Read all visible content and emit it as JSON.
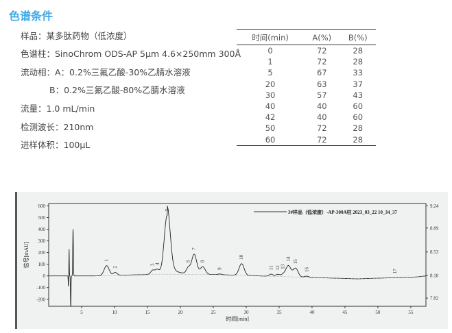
{
  "section_title": "色谱条件",
  "conditions": [
    "样品：某多肽药物（低浓度）",
    "色谱柱：SinoChrom ODS-AP 5μm 4.6×250mm 300Å",
    "流动相：A：0.2%三氟乙酸-30%乙腈水溶液",
    "B：0.2%三氟乙酸-80%乙腈水溶液",
    "流量：1.0 mL/min",
    "检测波长：210nm",
    "进样体积：100μL"
  ],
  "gradient_table": {
    "headers": [
      "时间(min)",
      "A(%)",
      "B(%)"
    ],
    "rows": [
      [
        "0",
        "72",
        "28"
      ],
      [
        "1",
        "72",
        "28"
      ],
      [
        "5",
        "67",
        "33"
      ],
      [
        "20",
        "63",
        "37"
      ],
      [
        "30",
        "57",
        "43"
      ],
      [
        "40",
        "40",
        "60"
      ],
      [
        "42",
        "40",
        "60"
      ],
      [
        "50",
        "72",
        "28"
      ],
      [
        "60",
        "72",
        "28"
      ]
    ]
  },
  "colors": {
    "title": "#3fa9e6",
    "trace": "#222222",
    "panel": "#f0f1f1"
  },
  "chart_data": {
    "type": "line",
    "xlabel": "时间[min]",
    "ylabel": "信号[mAU]",
    "xlim": [
      0,
      57.3
    ],
    "ylim": [
      -260,
      620
    ],
    "xticks": [
      "5",
      "10",
      "15",
      "20",
      "25",
      "30",
      "35",
      "40",
      "45",
      "50",
      "55"
    ],
    "yticks": [
      "600",
      "500",
      "400",
      "300",
      "200",
      "100",
      "0",
      "-100",
      "-200"
    ],
    "right_ticks": [
      {
        "label": "9.24",
        "at": 600
      },
      {
        "label": "8.89",
        "at": 410
      },
      {
        "label": "8.53",
        "at": 205
      },
      {
        "label": "8.18",
        "at": 5
      },
      {
        "label": "7.82",
        "at": -190
      }
    ],
    "legend": "3#样品（低浓度）-AP-300A柱 2023_03_22 10_34_37",
    "legend_position": "top-right",
    "grid": false,
    "peaks": [
      {
        "label": "1",
        "time": 8.8,
        "height": 85
      },
      {
        "label": "2",
        "time": 10.1,
        "height": 25
      },
      {
        "label": "3",
        "time": 15.8,
        "height": 35
      },
      {
        "label": "4",
        "time": 16.5,
        "height": 40
      },
      {
        "label": "5",
        "time": 18.0,
        "height": 505
      },
      {
        "label": "6",
        "time": 21.2,
        "height": 50
      },
      {
        "label": "7",
        "time": 22.1,
        "height": 170
      },
      {
        "label": "8",
        "time": 23.4,
        "height": 65
      },
      {
        "label": "9",
        "time": 26.0,
        "height": 6
      },
      {
        "label": "10",
        "time": 29.3,
        "height": 100
      },
      {
        "label": "11",
        "time": 33.8,
        "height": 18
      },
      {
        "label": "12",
        "time": 34.8,
        "height": 18
      },
      {
        "label": "13",
        "time": 35.6,
        "height": 18
      },
      {
        "label": "14",
        "time": 36.4,
        "height": 95
      },
      {
        "label": "15",
        "time": 37.5,
        "height": 75
      },
      {
        "label": "16",
        "time": 39.2,
        "height": 10
      },
      {
        "label": "17",
        "time": 52.6,
        "height": 0
      }
    ]
  }
}
